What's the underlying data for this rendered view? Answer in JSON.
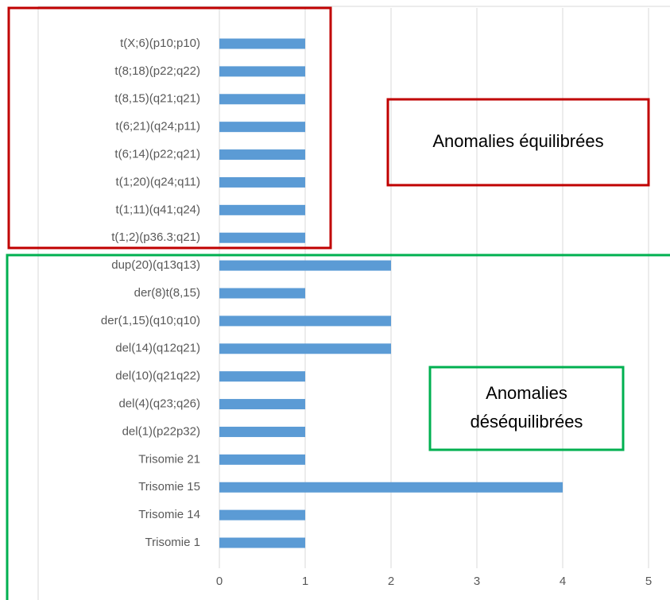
{
  "chart_data": {
    "type": "bar",
    "orientation": "horizontal",
    "categories": [
      "t(X;6)(p10;p10)",
      "t(8;18)(p22;q22)",
      "t(8,15)(q21;q21)",
      "t(6;21)(q24;p11)",
      "t(6;14)(p22;q21)",
      "t(1;20)(q24;q11)",
      "t(1;11)(q41;q24)",
      "t(1;2)(p36.3;q21)",
      "dup(20)(q13q13)",
      "der(8)t(8,15)",
      "der(1,15)(q10;q10)",
      "del(14)(q12q21)",
      "del(10)(q21q22)",
      "del(4)(q23;q26)",
      "del(1)(p22p32)",
      "Trisomie 21",
      "Trisomie 15",
      "Trisomie 14",
      "Trisomie 1"
    ],
    "values": [
      1,
      1,
      1,
      1,
      1,
      1,
      1,
      1,
      2,
      1,
      2,
      2,
      1,
      1,
      1,
      1,
      4,
      1,
      1
    ],
    "color": "#5b9bd5",
    "xlim": [
      0,
      5
    ],
    "xticks": [
      0,
      1,
      2,
      3,
      4,
      5
    ],
    "grid": true,
    "annotations": [
      {
        "lines": [
          "Anomalies équilibrées"
        ],
        "color": "#c00000"
      },
      {
        "lines": [
          "Anomalies",
          "déséquilibrées"
        ],
        "color": "#00b050"
      }
    ]
  }
}
